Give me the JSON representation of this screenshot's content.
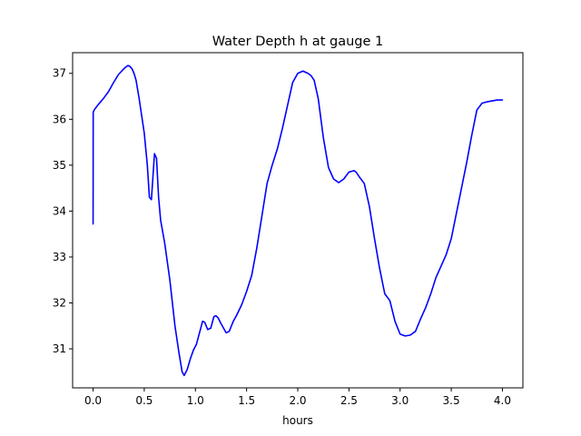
{
  "chart_data": {
    "type": "line",
    "title": "Water Depth h at gauge 1",
    "xlabel": "hours",
    "ylabel": "",
    "xlim": [
      -0.2,
      4.2
    ],
    "ylim": [
      30.15,
      37.45
    ],
    "xticks": [
      0.0,
      0.5,
      1.0,
      1.5,
      2.0,
      2.5,
      3.0,
      3.5,
      4.0
    ],
    "xtick_labels": [
      "0.0",
      "0.5",
      "1.0",
      "1.5",
      "2.0",
      "2.5",
      "3.0",
      "3.5",
      "4.0"
    ],
    "yticks": [
      31,
      32,
      33,
      34,
      35,
      36,
      37
    ],
    "ytick_labels": [
      "31",
      "32",
      "33",
      "34",
      "35",
      "36",
      "37"
    ],
    "grid": false,
    "series": [
      {
        "color": "#0000ff",
        "x": [
          0.0,
          0.001,
          0.01,
          0.05,
          0.1,
          0.15,
          0.2,
          0.25,
          0.28,
          0.31,
          0.34,
          0.36,
          0.38,
          0.4,
          0.42,
          0.45,
          0.5,
          0.53,
          0.55,
          0.57,
          0.6,
          0.62,
          0.64,
          0.66,
          0.7,
          0.75,
          0.8,
          0.84,
          0.87,
          0.89,
          0.92,
          0.95,
          0.98,
          1.01,
          1.04,
          1.07,
          1.09,
          1.12,
          1.15,
          1.18,
          1.2,
          1.22,
          1.25,
          1.3,
          1.33,
          1.37,
          1.4,
          1.45,
          1.5,
          1.55,
          1.6,
          1.65,
          1.7,
          1.75,
          1.8,
          1.85,
          1.9,
          1.95,
          2.0,
          2.05,
          2.08,
          2.1,
          2.13,
          2.16,
          2.2,
          2.25,
          2.3,
          2.35,
          2.4,
          2.45,
          2.5,
          2.55,
          2.57,
          2.6,
          2.65,
          2.7,
          2.75,
          2.8,
          2.85,
          2.9,
          2.95,
          3.0,
          3.05,
          3.1,
          3.15,
          3.2,
          3.25,
          3.3,
          3.35,
          3.4,
          3.45,
          3.5,
          3.55,
          3.6,
          3.65,
          3.7,
          3.75,
          3.8,
          3.85,
          3.9,
          3.95,
          4.0
        ],
        "y": [
          33.72,
          36.15,
          36.2,
          36.32,
          36.45,
          36.6,
          36.8,
          36.98,
          37.05,
          37.12,
          37.17,
          37.15,
          37.1,
          37.0,
          36.85,
          36.45,
          35.7,
          35.0,
          34.3,
          34.25,
          35.25,
          35.15,
          34.3,
          33.8,
          33.3,
          32.5,
          31.5,
          30.9,
          30.5,
          30.42,
          30.55,
          30.78,
          30.97,
          31.1,
          31.35,
          31.6,
          31.58,
          31.42,
          31.45,
          31.7,
          31.72,
          31.68,
          31.55,
          31.35,
          31.38,
          31.6,
          31.72,
          31.95,
          32.25,
          32.6,
          33.2,
          33.9,
          34.6,
          35.0,
          35.35,
          35.8,
          36.3,
          36.8,
          37.0,
          37.05,
          37.02,
          37.0,
          36.95,
          36.85,
          36.45,
          35.6,
          34.95,
          34.7,
          34.62,
          34.7,
          34.85,
          34.88,
          34.85,
          34.75,
          34.6,
          34.1,
          33.4,
          32.75,
          32.2,
          32.05,
          31.6,
          31.32,
          31.28,
          31.3,
          31.38,
          31.65,
          31.9,
          32.2,
          32.55,
          32.8,
          33.05,
          33.4,
          33.95,
          34.5,
          35.05,
          35.65,
          36.2,
          36.35,
          36.38,
          36.4,
          36.42,
          36.42
        ]
      }
    ]
  }
}
